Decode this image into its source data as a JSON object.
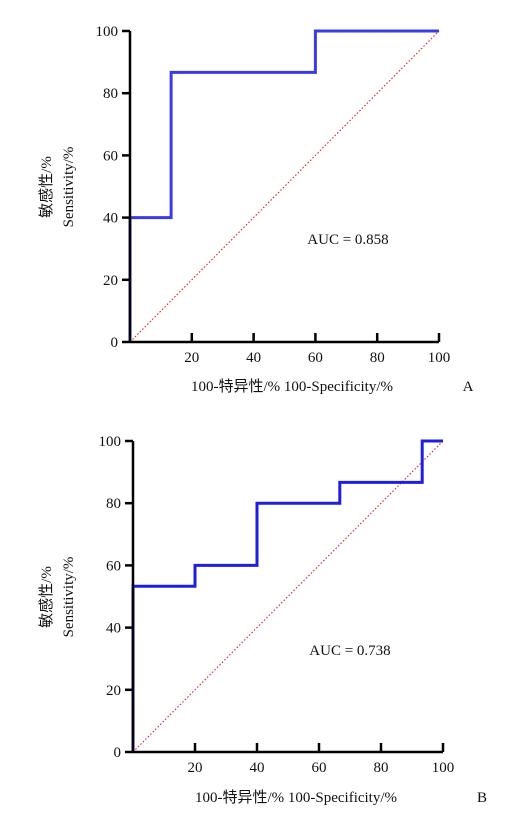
{
  "chart_data": [
    {
      "type": "line",
      "panel_label": "A",
      "xlabel": "100-特异性/%  100-Specificity/%",
      "ylabel_cn": "敏感性/%",
      "ylabel_en": "Sensitivity/%",
      "xlim": [
        0,
        100
      ],
      "ylim": [
        0,
        100
      ],
      "xticks": [
        "20",
        "40",
        "60",
        "80",
        "100"
      ],
      "yticks": [
        "0",
        "20",
        "40",
        "60",
        "80",
        "100"
      ],
      "annotation": "AUC = 0.858",
      "series": [
        {
          "color": "#3a3ae6",
          "x": [
            0,
            0,
            13.3,
            13.3,
            60,
            60,
            100
          ],
          "y": [
            0,
            40,
            40,
            86.7,
            86.7,
            100,
            100
          ]
        }
      ],
      "reference_line": {
        "color": "#e02020",
        "style": "dotted",
        "x": [
          0,
          100
        ],
        "y": [
          0,
          100
        ]
      }
    },
    {
      "type": "line",
      "panel_label": "B",
      "xlabel": "100-特异性/%  100-Specificity/%",
      "ylabel_cn": "敏感性/%",
      "ylabel_en": "Sensitivity/%",
      "xlim": [
        0,
        100
      ],
      "ylim": [
        0,
        100
      ],
      "xticks": [
        "20",
        "40",
        "60",
        "80",
        "100"
      ],
      "yticks": [
        "0",
        "20",
        "40",
        "60",
        "80",
        "100"
      ],
      "annotation": "AUC = 0.738",
      "series": [
        {
          "color": "#1e1ee0",
          "x": [
            0,
            0,
            20,
            20,
            40,
            40,
            66.7,
            66.7,
            93.3,
            93.3,
            100
          ],
          "y": [
            0,
            53.3,
            53.3,
            60,
            60,
            80,
            80,
            86.7,
            86.7,
            100,
            100
          ]
        }
      ],
      "reference_line": {
        "color": "#e02020",
        "style": "dotted",
        "x": [
          0,
          100
        ],
        "y": [
          0,
          100
        ]
      }
    }
  ]
}
